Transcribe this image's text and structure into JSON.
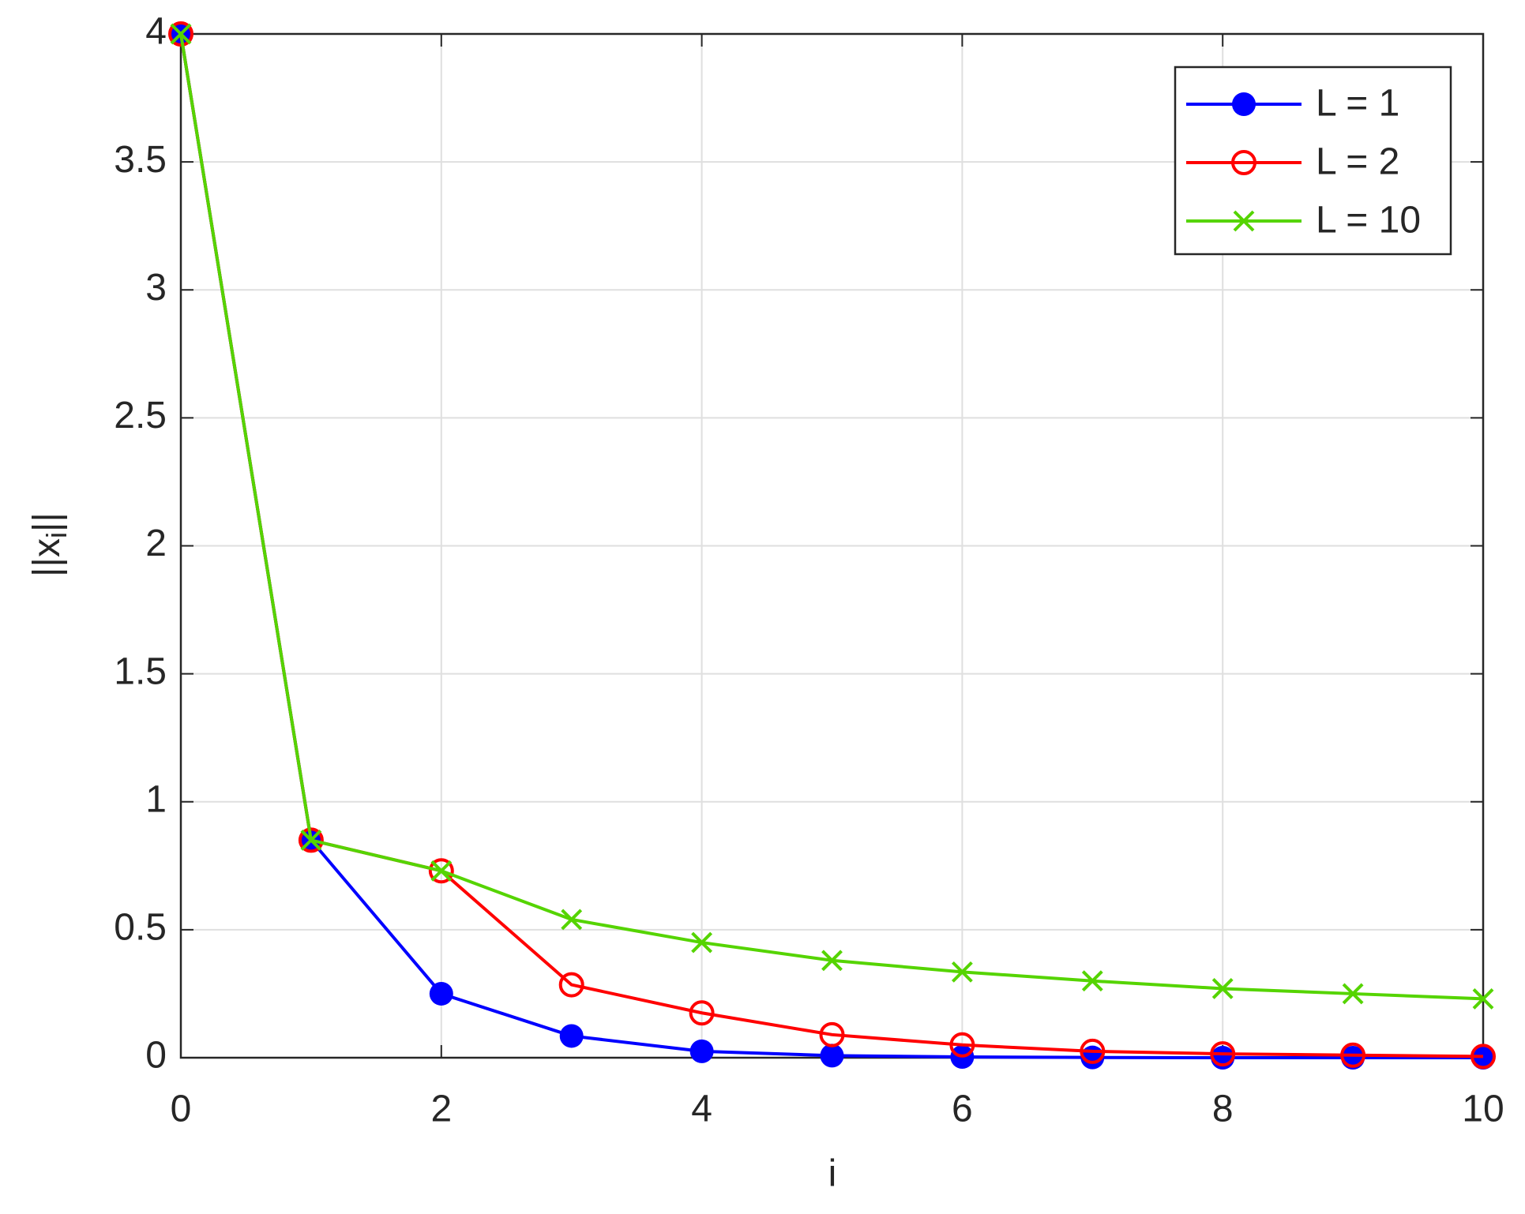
{
  "chart_data": {
    "type": "line",
    "xlabel": "i",
    "ylabel": [
      "||x",
      "i",
      "||"
    ],
    "x": [
      0,
      1,
      2,
      3,
      4,
      5,
      6,
      7,
      8,
      9,
      10
    ],
    "series": [
      {
        "name": "L = 1",
        "color": "#0000ff",
        "marker": "filled-circle",
        "values": [
          4,
          0.85,
          0.25,
          0.085,
          0.025,
          0.008,
          0.003,
          0.001,
          0,
          0,
          0
        ]
      },
      {
        "name": "L = 2",
        "color": "#ff0000",
        "marker": "open-circle",
        "values": [
          4,
          0.85,
          0.73,
          0.285,
          0.175,
          0.09,
          0.05,
          0.025,
          0.015,
          0.01,
          0.005
        ]
      },
      {
        "name": "L = 10",
        "color": "#55d400",
        "marker": "x",
        "values": [
          4,
          0.85,
          0.73,
          0.54,
          0.45,
          0.38,
          0.335,
          0.3,
          0.27,
          0.25,
          0.23
        ]
      }
    ],
    "xlim": [
      0,
      10
    ],
    "xticks": [
      0,
      2,
      4,
      6,
      8,
      10
    ],
    "ylim": [
      0,
      4
    ],
    "yticks": [
      0,
      0.5,
      1,
      1.5,
      2,
      2.5,
      3,
      3.5,
      4
    ],
    "grid": true,
    "legend": "top-right"
  }
}
